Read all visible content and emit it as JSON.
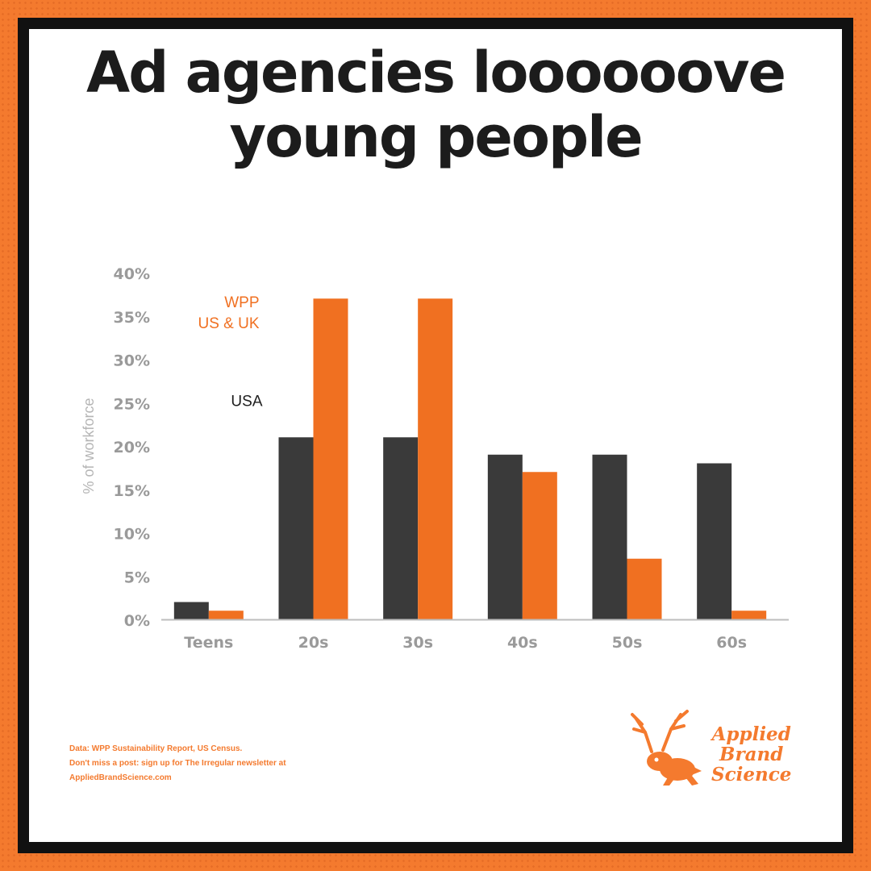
{
  "title_lines": [
    "Ad agencies loooooove",
    "young people"
  ],
  "colors": {
    "usa": "#3a3a3a",
    "wpp": "#f07021",
    "axis_text": "#9a9a9a",
    "border": "#111111",
    "background": "#f47a2e"
  },
  "chart_data": {
    "type": "bar",
    "categories": [
      "Teens",
      "20s",
      "30s",
      "40s",
      "50s",
      "60s"
    ],
    "series": [
      {
        "name": "USA",
        "values": [
          2,
          21,
          21,
          19,
          19,
          18
        ]
      },
      {
        "name": "WPP US & UK",
        "values": [
          1,
          37,
          37,
          17,
          7,
          1
        ]
      }
    ],
    "series_label_lines": {
      "USA": [
        "USA"
      ],
      "WPP US & UK": [
        "WPP",
        "US & UK"
      ]
    },
    "ylabel": "% of workforce",
    "xlabel": "",
    "ylim": [
      0,
      40
    ],
    "yticks": [
      "0%",
      "5%",
      "10%",
      "15%",
      "20%",
      "25%",
      "30%",
      "35%",
      "40%"
    ],
    "legend": "inline labels above bars",
    "grid": false
  },
  "footnote_lines": [
    "Data: WPP Sustainability Report, US Census.",
    "Don't miss a post: sign up for The Irregular newsletter at",
    "AppliedBrandScience.com"
  ],
  "logo": {
    "icon": "jackalope-icon",
    "lines": [
      "Applied",
      "Brand",
      "Science"
    ]
  }
}
